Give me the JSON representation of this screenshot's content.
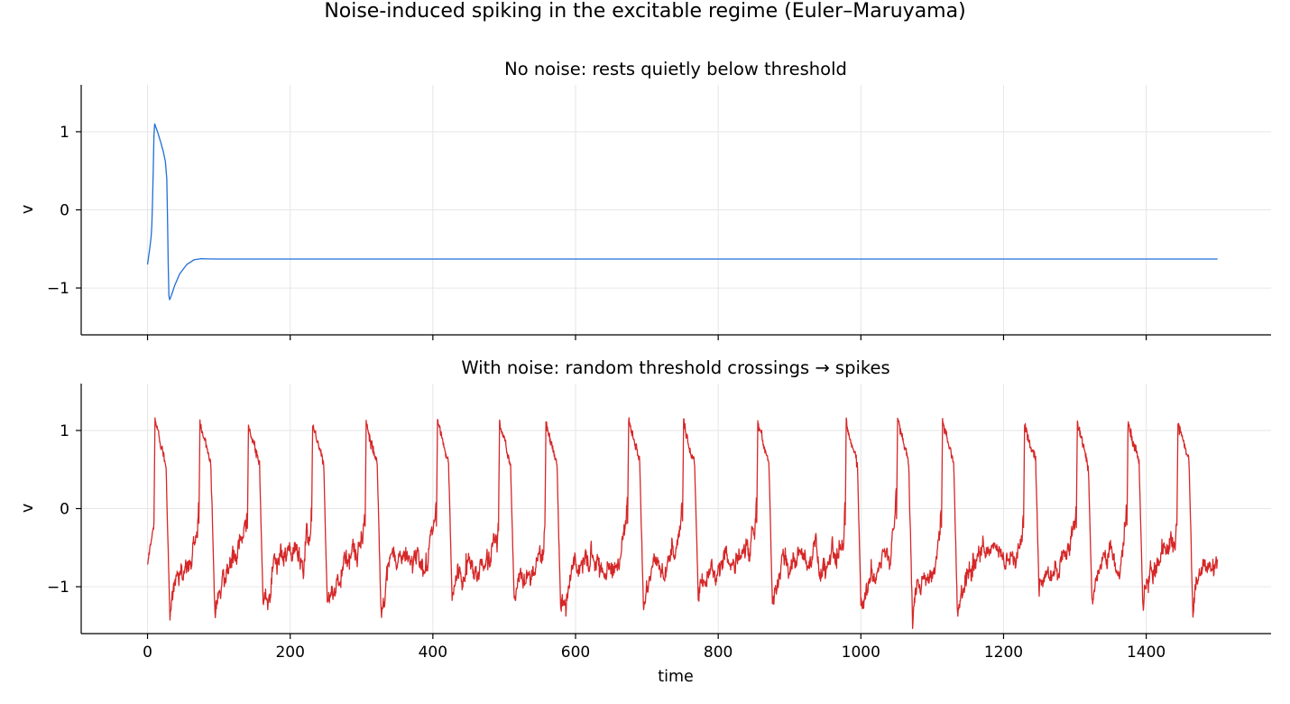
{
  "figure": {
    "title": "Noise-induced spiking in the excitable regime (Euler–Maruyama)",
    "xlabel": "time"
  },
  "chart_data": [
    {
      "type": "line",
      "title": "No noise: rests quietly below threshold",
      "xlabel": "",
      "ylabel": "v",
      "xlim": [
        -93,
        1575
      ],
      "ylim": [
        -1.6,
        1.6
      ],
      "xticks": [
        0,
        200,
        400,
        600,
        800,
        1000,
        1200,
        1400
      ],
      "yticks": [
        -1,
        0,
        1
      ],
      "ytick_labels": [
        "−1",
        "0",
        "1"
      ],
      "grid": true,
      "color": "#1f6fd6",
      "series": [
        {
          "x": [
            0,
            3,
            5,
            6,
            7,
            8,
            9,
            10,
            14,
            18,
            22,
            25,
            27,
            28,
            29,
            30,
            31,
            34,
            38,
            45,
            55,
            65,
            75,
            85,
            100,
            200,
            400,
            600,
            800,
            1000,
            1200,
            1400,
            1500
          ],
          "values": [
            -0.7,
            -0.5,
            -0.35,
            -0.2,
            0.1,
            0.5,
            0.95,
            1.1,
            1.0,
            0.88,
            0.75,
            0.62,
            0.4,
            -0.1,
            -0.7,
            -1.1,
            -1.15,
            -1.08,
            -0.97,
            -0.82,
            -0.7,
            -0.64,
            -0.625,
            -0.628,
            -0.63,
            -0.63,
            -0.63,
            -0.63,
            -0.63,
            -0.63,
            -0.63,
            -0.63,
            -0.63
          ]
        }
      ]
    },
    {
      "type": "line",
      "title": "With noise: random threshold crossings → spikes",
      "xlabel": "time",
      "ylabel": "v",
      "xlim": [
        -93,
        1575
      ],
      "ylim": [
        -1.6,
        1.6
      ],
      "xticks": [
        0,
        200,
        400,
        600,
        800,
        1000,
        1200,
        1400
      ],
      "xtick_labels": [
        "0",
        "200",
        "400",
        "600",
        "800",
        "1000",
        "1200",
        "1400"
      ],
      "yticks": [
        -1,
        0,
        1
      ],
      "ytick_labels": [
        "−1",
        "0",
        "1"
      ],
      "grid": true,
      "color": "#d62728",
      "x_range": [
        0,
        1500
      ],
      "spike_times": [
        9,
        72,
        140,
        230,
        305,
        405,
        492,
        557,
        673,
        750,
        854,
        978,
        1050,
        1113,
        1228,
        1302,
        1373,
        1443
      ],
      "spike_peak": 1.12,
      "trough": -1.18,
      "rest_level": -0.62,
      "start_value": -0.7,
      "end_value": -0.65
    }
  ]
}
